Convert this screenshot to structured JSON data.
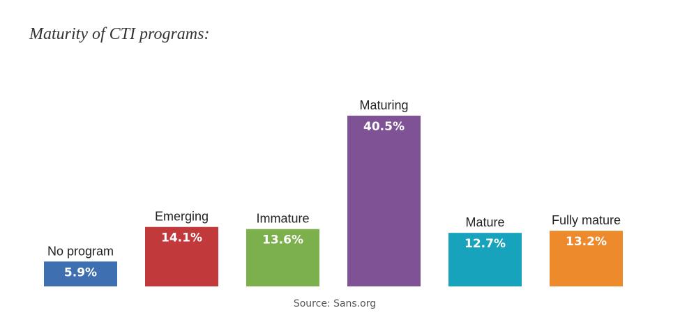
{
  "title": "Maturity of CTI programs:",
  "source": "Source: Sans.org",
  "chart_data": {
    "type": "bar",
    "title": "Maturity of CTI programs:",
    "categories": [
      "No program",
      "Emerging",
      "Immature",
      "Maturing",
      "Mature",
      "Fully mature"
    ],
    "values": [
      5.9,
      14.1,
      13.6,
      40.5,
      12.7,
      13.2
    ],
    "value_labels": [
      "5.9%",
      "14.1%",
      "13.6%",
      "40.5%",
      "12.7%",
      "13.2%"
    ],
    "colors": [
      "#3d6fb1",
      "#c1393b",
      "#7cb04c",
      "#7f5295",
      "#16a3bb",
      "#ec8a2c"
    ],
    "unit": "%",
    "xlabel": "",
    "ylabel": "",
    "grid": false,
    "legend": "none"
  }
}
